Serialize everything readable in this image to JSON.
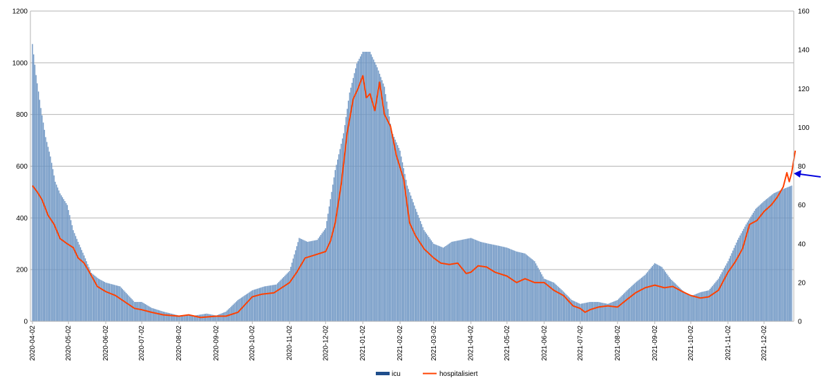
{
  "chart_data": {
    "type": "bar",
    "title": "",
    "xlabel": "",
    "ylabel": "",
    "ylim_left": [
      0,
      1200
    ],
    "ylim_right": [
      0,
      160
    ],
    "yticks_left": [
      "0",
      "200",
      "400",
      "600",
      "800",
      "1000",
      "1200"
    ],
    "yticks_right": [
      "0",
      "20",
      "40",
      "60",
      "80",
      "100",
      "120",
      "140",
      "160"
    ],
    "grid": true,
    "legend_placement": "bottom-center",
    "x_start": "2020-04-02",
    "x_end": "2021-12-25",
    "x_tick_labels": [
      "2020-04-02",
      "2020-05-02",
      "2020-06-02",
      "2020-07-02",
      "2020-08-02",
      "2020-09-02",
      "2020-10-02",
      "2020-11-02",
      "2020-12-02",
      "2021-01-02",
      "2021-02-02",
      "2021-03-02",
      "2021-04-02",
      "2021-05-02",
      "2021-06-02",
      "2021-07-02",
      "2021-08-02",
      "2021-09-02",
      "2021-10-02",
      "2021-11-02",
      "2021-12-02"
    ],
    "series": [
      {
        "name": "icu",
        "kind": "bar",
        "axis": "right",
        "color": "#6d95c3",
        "points": [
          [
            "2020-04-02",
            143
          ],
          [
            "2020-04-05",
            127
          ],
          [
            "2020-04-09",
            110
          ],
          [
            "2020-04-13",
            95
          ],
          [
            "2020-04-17",
            85
          ],
          [
            "2020-04-21",
            72
          ],
          [
            "2020-04-25",
            66
          ],
          [
            "2020-05-01",
            60
          ],
          [
            "2020-05-06",
            47
          ],
          [
            "2020-05-10",
            41
          ],
          [
            "2020-05-15",
            34
          ],
          [
            "2020-05-21",
            25
          ],
          [
            "2020-05-27",
            22
          ],
          [
            "2020-06-02",
            20
          ],
          [
            "2020-06-08",
            19
          ],
          [
            "2020-06-14",
            18
          ],
          [
            "2020-06-20",
            14
          ],
          [
            "2020-06-26",
            10
          ],
          [
            "2020-07-02",
            10
          ],
          [
            "2020-07-10",
            7
          ],
          [
            "2020-07-20",
            5
          ],
          [
            "2020-08-02",
            3
          ],
          [
            "2020-08-15",
            3
          ],
          [
            "2020-08-25",
            4
          ],
          [
            "2020-09-02",
            3
          ],
          [
            "2020-09-10",
            5
          ],
          [
            "2020-09-20",
            11
          ],
          [
            "2020-10-02",
            16
          ],
          [
            "2020-10-12",
            18
          ],
          [
            "2020-10-22",
            19
          ],
          [
            "2020-11-02",
            26
          ],
          [
            "2020-11-10",
            43
          ],
          [
            "2020-11-17",
            41
          ],
          [
            "2020-11-25",
            42
          ],
          [
            "2020-12-02",
            48
          ],
          [
            "2020-12-10",
            78
          ],
          [
            "2020-12-17",
            97
          ],
          [
            "2020-12-22",
            118
          ],
          [
            "2020-12-28",
            133
          ],
          [
            "2021-01-02",
            139
          ],
          [
            "2021-01-08",
            139
          ],
          [
            "2021-01-14",
            131
          ],
          [
            "2021-01-20",
            121
          ],
          [
            "2021-01-26",
            98
          ],
          [
            "2021-02-02",
            88
          ],
          [
            "2021-02-08",
            70
          ],
          [
            "2021-02-15",
            58
          ],
          [
            "2021-02-22",
            47
          ],
          [
            "2021-03-02",
            40
          ],
          [
            "2021-03-10",
            38
          ],
          [
            "2021-03-17",
            41
          ],
          [
            "2021-03-25",
            42
          ],
          [
            "2021-04-02",
            43
          ],
          [
            "2021-04-10",
            41
          ],
          [
            "2021-04-17",
            40
          ],
          [
            "2021-04-25",
            39
          ],
          [
            "2021-05-02",
            38
          ],
          [
            "2021-05-10",
            36
          ],
          [
            "2021-05-17",
            35
          ],
          [
            "2021-05-25",
            31
          ],
          [
            "2021-06-02",
            22
          ],
          [
            "2021-06-10",
            20
          ],
          [
            "2021-06-17",
            16
          ],
          [
            "2021-06-25",
            11
          ],
          [
            "2021-07-02",
            9
          ],
          [
            "2021-07-10",
            10
          ],
          [
            "2021-07-17",
            10
          ],
          [
            "2021-07-25",
            9
          ],
          [
            "2021-08-02",
            11
          ],
          [
            "2021-08-10",
            16
          ],
          [
            "2021-08-17",
            20
          ],
          [
            "2021-08-25",
            24
          ],
          [
            "2021-09-02",
            30
          ],
          [
            "2021-09-08",
            28
          ],
          [
            "2021-09-15",
            22
          ],
          [
            "2021-09-25",
            16
          ],
          [
            "2021-10-02",
            13
          ],
          [
            "2021-10-10",
            15
          ],
          [
            "2021-10-17",
            16
          ],
          [
            "2021-10-25",
            22
          ],
          [
            "2021-11-02",
            31
          ],
          [
            "2021-11-10",
            42
          ],
          [
            "2021-11-17",
            50
          ],
          [
            "2021-11-25",
            58
          ],
          [
            "2021-12-02",
            62
          ],
          [
            "2021-12-10",
            66
          ],
          [
            "2021-12-17",
            68
          ],
          [
            "2021-12-25",
            70
          ]
        ]
      },
      {
        "name": "hospitalisiert",
        "kind": "line",
        "axis": "left",
        "color": "#ff4000",
        "points": [
          [
            "2020-04-02",
            525
          ],
          [
            "2020-04-06",
            500
          ],
          [
            "2020-04-10",
            470
          ],
          [
            "2020-04-15",
            410
          ],
          [
            "2020-04-20",
            375
          ],
          [
            "2020-04-25",
            320
          ],
          [
            "2020-05-01",
            300
          ],
          [
            "2020-05-06",
            285
          ],
          [
            "2020-05-10",
            245
          ],
          [
            "2020-05-15",
            225
          ],
          [
            "2020-05-20",
            185
          ],
          [
            "2020-05-26",
            135
          ],
          [
            "2020-06-02",
            115
          ],
          [
            "2020-06-10",
            100
          ],
          [
            "2020-06-18",
            75
          ],
          [
            "2020-06-26",
            50
          ],
          [
            "2020-07-02",
            45
          ],
          [
            "2020-07-10",
            35
          ],
          [
            "2020-07-20",
            25
          ],
          [
            "2020-08-02",
            20
          ],
          [
            "2020-08-10",
            25
          ],
          [
            "2020-08-20",
            15
          ],
          [
            "2020-09-02",
            20
          ],
          [
            "2020-09-10",
            20
          ],
          [
            "2020-09-20",
            35
          ],
          [
            "2020-10-02",
            95
          ],
          [
            "2020-10-10",
            105
          ],
          [
            "2020-10-20",
            110
          ],
          [
            "2020-11-02",
            150
          ],
          [
            "2020-11-08",
            190
          ],
          [
            "2020-11-15",
            245
          ],
          [
            "2020-11-22",
            255
          ],
          [
            "2020-12-02",
            270
          ],
          [
            "2020-12-06",
            310
          ],
          [
            "2020-12-10",
            380
          ],
          [
            "2020-12-15",
            530
          ],
          [
            "2020-12-20",
            730
          ],
          [
            "2020-12-25",
            860
          ],
          [
            "2020-12-29",
            900
          ],
          [
            "2021-01-02",
            950
          ],
          [
            "2021-01-05",
            865
          ],
          [
            "2021-01-08",
            880
          ],
          [
            "2021-01-12",
            815
          ],
          [
            "2021-01-16",
            925
          ],
          [
            "2021-01-20",
            800
          ],
          [
            "2021-01-25",
            755
          ],
          [
            "2021-01-30",
            640
          ],
          [
            "2021-02-05",
            550
          ],
          [
            "2021-02-10",
            380
          ],
          [
            "2021-02-15",
            330
          ],
          [
            "2021-02-22",
            280
          ],
          [
            "2021-03-02",
            245
          ],
          [
            "2021-03-08",
            225
          ],
          [
            "2021-03-15",
            220
          ],
          [
            "2021-03-22",
            225
          ],
          [
            "2021-03-29",
            185
          ],
          [
            "2021-04-02",
            190
          ],
          [
            "2021-04-08",
            215
          ],
          [
            "2021-04-15",
            210
          ],
          [
            "2021-04-22",
            190
          ],
          [
            "2021-05-02",
            175
          ],
          [
            "2021-05-10",
            150
          ],
          [
            "2021-05-17",
            165
          ],
          [
            "2021-05-25",
            150
          ],
          [
            "2021-06-02",
            150
          ],
          [
            "2021-06-10",
            120
          ],
          [
            "2021-06-18",
            100
          ],
          [
            "2021-06-26",
            60
          ],
          [
            "2021-07-02",
            50
          ],
          [
            "2021-07-06",
            35
          ],
          [
            "2021-07-10",
            45
          ],
          [
            "2021-07-17",
            55
          ],
          [
            "2021-07-25",
            60
          ],
          [
            "2021-08-02",
            55
          ],
          [
            "2021-08-10",
            85
          ],
          [
            "2021-08-17",
            110
          ],
          [
            "2021-08-25",
            130
          ],
          [
            "2021-09-02",
            140
          ],
          [
            "2021-09-10",
            130
          ],
          [
            "2021-09-17",
            135
          ],
          [
            "2021-09-25",
            115
          ],
          [
            "2021-10-02",
            100
          ],
          [
            "2021-10-10",
            90
          ],
          [
            "2021-10-17",
            95
          ],
          [
            "2021-10-25",
            120
          ],
          [
            "2021-11-02",
            190
          ],
          [
            "2021-11-08",
            230
          ],
          [
            "2021-11-14",
            280
          ],
          [
            "2021-11-20",
            375
          ],
          [
            "2021-11-26",
            390
          ],
          [
            "2021-12-02",
            425
          ],
          [
            "2021-12-08",
            450
          ],
          [
            "2021-12-13",
            480
          ],
          [
            "2021-12-18",
            520
          ],
          [
            "2021-12-21",
            575
          ],
          [
            "2021-12-23",
            540
          ],
          [
            "2021-12-25",
            575
          ],
          [
            "2021-12-28",
            660
          ]
        ]
      }
    ]
  }
}
